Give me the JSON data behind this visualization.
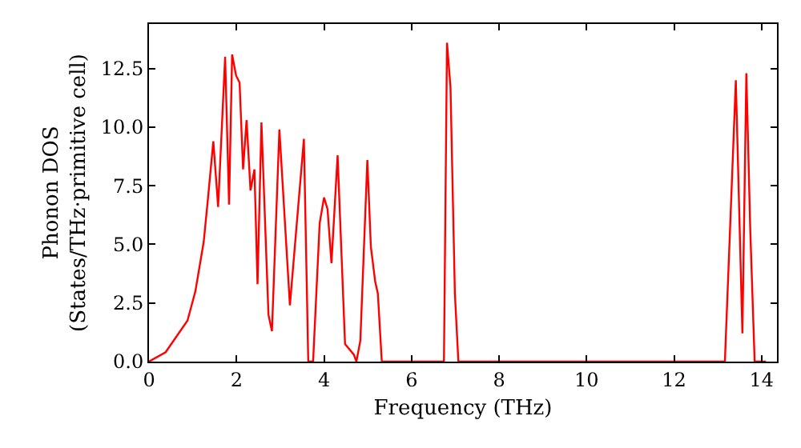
{
  "chart_data": {
    "type": "line",
    "xlabel": "Frequency (THz)",
    "ylabel": "Phonon DOS\n(States/THz·primitive cell)",
    "x": [
      0,
      0.38,
      0.88,
      1.06,
      1.25,
      1.35,
      1.47,
      1.58,
      1.74,
      1.83,
      1.9,
      1.99,
      2.07,
      2.15,
      2.23,
      2.32,
      2.41,
      2.48,
      2.57,
      2.73,
      2.81,
      2.98,
      3.22,
      3.54,
      3.64,
      3.75,
      3.9,
      4.0,
      4.08,
      4.17,
      4.31,
      4.48,
      4.68,
      4.74,
      4.83,
      4.99,
      5.07,
      5.17,
      5.23,
      5.32,
      6.74,
      6.81,
      6.89,
      6.99,
      7.07,
      13.16,
      13.41,
      13.56,
      13.65,
      13.74,
      13.84,
      14.1
    ],
    "series": [
      {
        "color": "#ff0000",
        "values": [
          0,
          0.4,
          1.75,
          3.0,
          5.1,
          7.0,
          9.4,
          6.6,
          13.0,
          6.7,
          13.1,
          12.2,
          11.9,
          8.2,
          10.3,
          7.3,
          8.2,
          3.3,
          10.2,
          2.0,
          1.3,
          9.9,
          2.4,
          9.5,
          0,
          0,
          5.9,
          7.0,
          6.5,
          4.2,
          8.8,
          0.75,
          0.3,
          0,
          0.9,
          8.6,
          4.9,
          3.4,
          2.9,
          0,
          0,
          13.6,
          11.7,
          2.9,
          0,
          0,
          12.0,
          1.2,
          12.3,
          5.6,
          0,
          0
        ]
      }
    ],
    "xlim": [
      0,
      14.35
    ],
    "ylim": [
      0,
      14.4
    ],
    "xticks": [
      0,
      2,
      4,
      6,
      8,
      10,
      12,
      14
    ],
    "yticks": [
      {
        "value": 0,
        "label": "0.0"
      },
      2.5,
      {
        "value": 5,
        "label": "5.0"
      },
      7.5,
      {
        "value": 10,
        "label": "10.0"
      },
      12.5
    ],
    "grid": false,
    "line_style": "solid",
    "marker": "none"
  }
}
